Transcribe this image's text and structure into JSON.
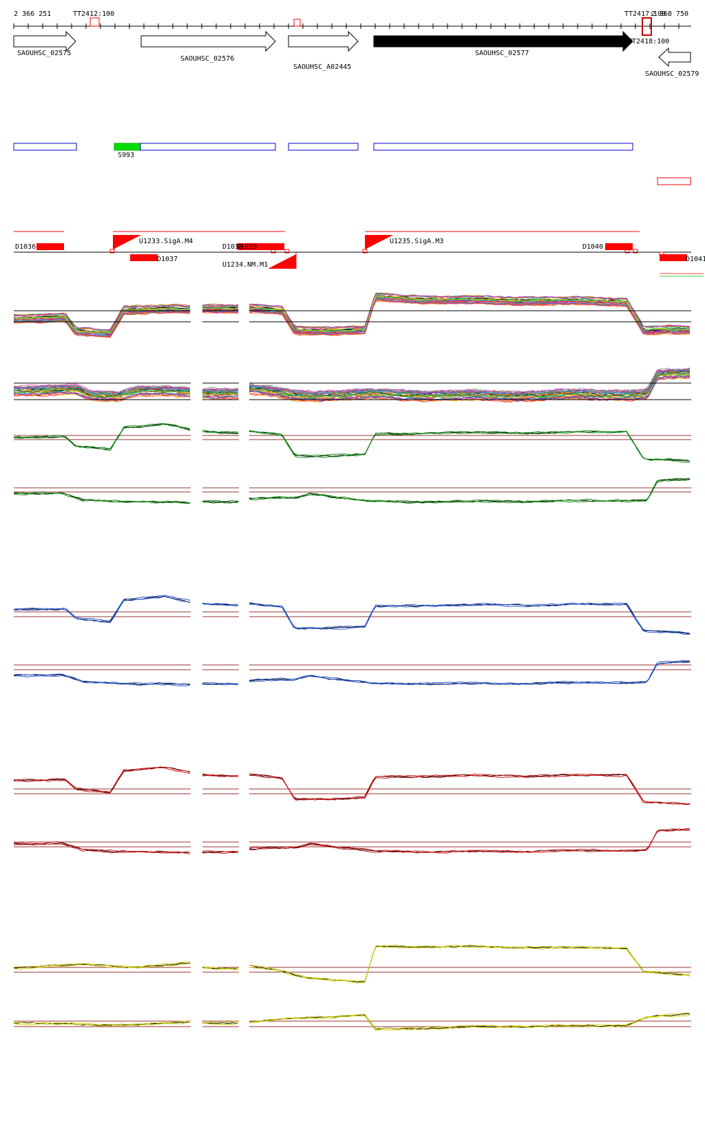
{
  "coordinates": {
    "start": "2 366 251",
    "end": "2 368 750"
  },
  "terminators": [
    {
      "label": "TT2412:100"
    },
    {
      "label": "TT2417:100"
    },
    {
      "label": "TT2418:100"
    }
  ],
  "genes": [
    {
      "label": "SAOUHSC_02575",
      "strand": "+",
      "highlighted": false
    },
    {
      "label": "SAOUHSC_02576",
      "strand": "+",
      "highlighted": false
    },
    {
      "label": "SAOUHSC_A02445",
      "strand": "+",
      "highlighted": false
    },
    {
      "label": "SAOUHSC_02577",
      "strand": "+",
      "highlighted": true
    },
    {
      "label": "SAOUHSC_02579",
      "strand": "-",
      "highlighted": false
    }
  ],
  "segments": [
    {
      "label": "S993",
      "color": "#00dd00"
    }
  ],
  "features": [
    {
      "label": "D1036"
    },
    {
      "label": "U1233.SigA.M4"
    },
    {
      "label": "D1037"
    },
    {
      "label": "D1038"
    },
    {
      "label": "D1039"
    },
    {
      "label": "U1234.NM.M1"
    },
    {
      "label": "U1235.SigA.M3"
    },
    {
      "label": "D1040"
    },
    {
      "label": "D1041"
    }
  ],
  "colors": {
    "gene_outline": "#000000",
    "gene_highlight": "#000000",
    "cds_box": "#0000cc",
    "feature_red": "#ff0000",
    "threshold_line": "#993333",
    "track_green": "#118811",
    "track_blue": "#2255cc",
    "track_red": "#cc1111",
    "track_yellow": "#cccc00"
  }
}
